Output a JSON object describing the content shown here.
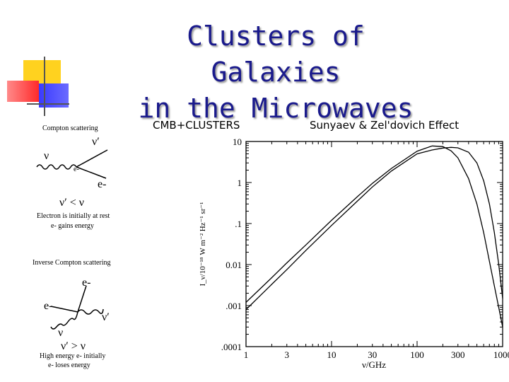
{
  "slide": {
    "title_line1": "Clusters of Galaxies",
    "title_line2": "in the Microwaves",
    "header_left": "CMB+CLUSTERS",
    "header_right": "Sunyaev & Zel'dovich Effect",
    "accent_colors": {
      "title": "#1a1a8c",
      "yellow": "#ffd21f",
      "red": "#ff3c3c",
      "blue": "#3340e0",
      "line": "#555555"
    }
  },
  "compton": {
    "title": "Compton scattering",
    "nu_prime": "ν′",
    "nu": "ν",
    "e": "e-",
    "e_minus": "e-",
    "relation": "ν′ < ν",
    "note_line1": "Electron is initially at rest",
    "note_line2": "e- gains energy"
  },
  "inverse": {
    "title": "Inverse Compton scattering",
    "e_out": "e-",
    "e_in": "e-",
    "nu_prime": "ν′",
    "nu": "ν",
    "relation": "ν′ > ν",
    "note_line1": "High energy e- initially",
    "note_line2": "e- loses energy"
  },
  "chart_data": {
    "type": "line",
    "xlabel": "ν/GHz",
    "ylabel": "I_ν/10⁻¹⁸ W m⁻² Hz⁻¹ sr⁻¹",
    "x_scale": "log",
    "y_scale": "log",
    "xlim": [
      1,
      1000
    ],
    "ylim": [
      0.0001,
      10
    ],
    "x_ticks": [
      "1",
      "3",
      "10",
      "30",
      "100",
      "300",
      "1000"
    ],
    "y_ticks": [
      "10",
      "1",
      ".1",
      "0.01",
      ".001",
      ".0001"
    ],
    "series": [
      {
        "x": [
          1,
          2,
          3,
          5,
          10,
          20,
          30,
          50,
          100,
          150,
          200,
          250,
          300,
          400,
          500,
          600,
          700,
          800,
          900,
          1000
        ],
        "y": [
          0.0012,
          0.0048,
          0.011,
          0.03,
          0.12,
          0.45,
          0.95,
          2.2,
          5.8,
          7.8,
          7.5,
          5.9,
          4.0,
          1.25,
          0.3,
          0.06,
          0.012,
          0.003,
          0.0009,
          0.0003
        ]
      },
      {
        "x": [
          1,
          2,
          3,
          5,
          10,
          20,
          30,
          50,
          100,
          150,
          200,
          250,
          300,
          400,
          500,
          600,
          700,
          800,
          900,
          1000
        ],
        "y": [
          0.0008,
          0.0033,
          0.0075,
          0.022,
          0.09,
          0.35,
          0.78,
          1.9,
          5.0,
          6.2,
          6.9,
          7.2,
          7.0,
          5.5,
          3.0,
          1.1,
          0.3,
          0.06,
          0.01,
          0.0015
        ]
      }
    ]
  }
}
